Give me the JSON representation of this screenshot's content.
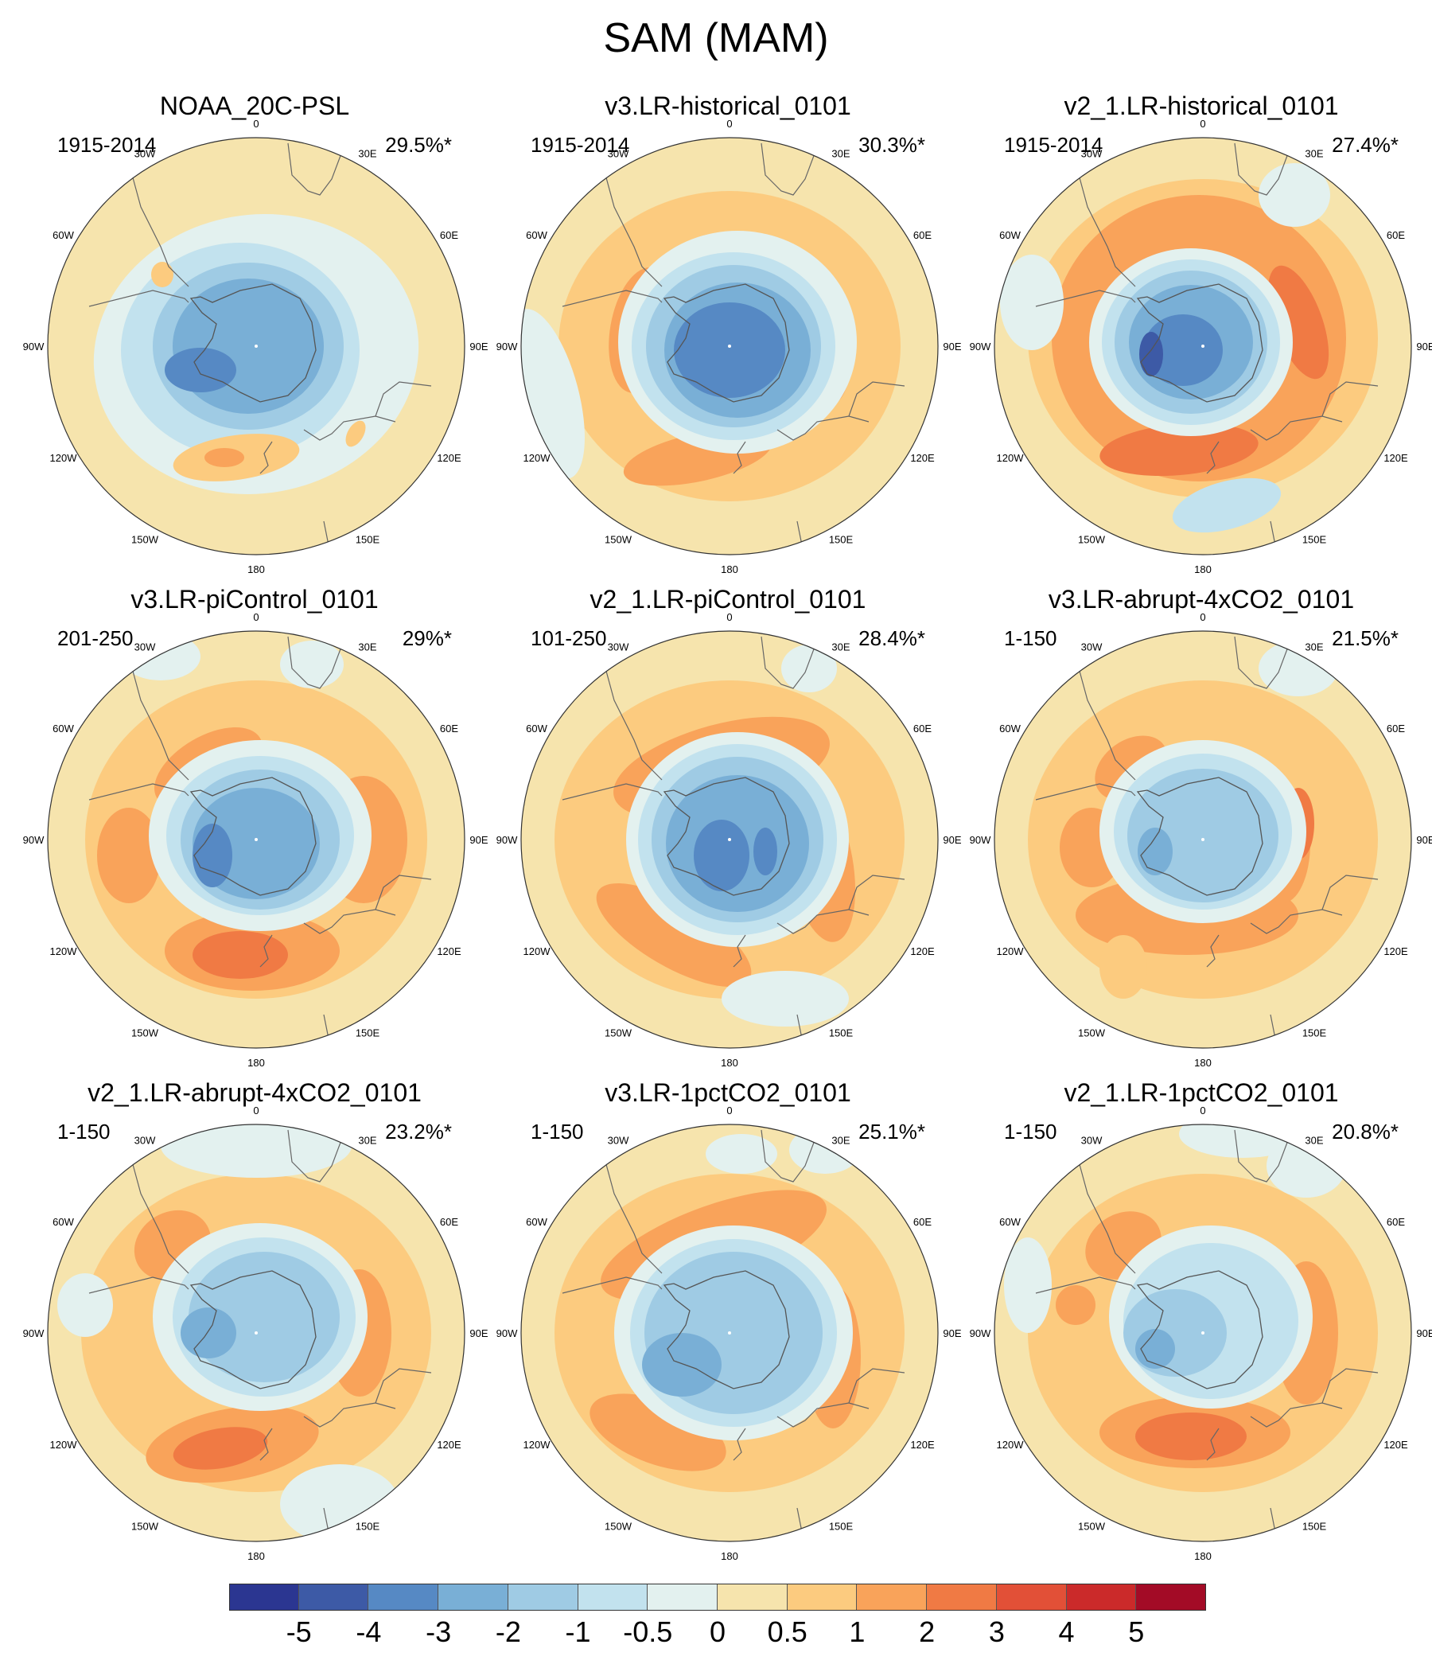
{
  "title": "SAM (MAM)",
  "panels": [
    {
      "title": "NOAA_20C-PSL",
      "period": "1915-2014",
      "variance": "29.5%*"
    },
    {
      "title": "v3.LR-historical_0101",
      "period": "1915-2014",
      "variance": "30.3%*"
    },
    {
      "title": "v2_1.LR-historical_0101",
      "period": "1915-2014",
      "variance": "27.4%*"
    },
    {
      "title": "v3.LR-piControl_0101",
      "period": "201-250",
      "variance": "29%*"
    },
    {
      "title": "v2_1.LR-piControl_0101",
      "period": "101-250",
      "variance": "28.4%*"
    },
    {
      "title": "v3.LR-abrupt-4xCO2_0101",
      "period": "1-150",
      "variance": "21.5%*"
    },
    {
      "title": "v2_1.LR-abrupt-4xCO2_0101",
      "period": "1-150",
      "variance": "23.2%*"
    },
    {
      "title": "v3.LR-1pctCO2_0101",
      "period": "1-150",
      "variance": "25.1%*"
    },
    {
      "title": "v2_1.LR-1pctCO2_0101",
      "period": "1-150",
      "variance": "20.8%*"
    }
  ],
  "longitude_labels": [
    "0",
    "30E",
    "60E",
    "90E",
    "120E",
    "150E",
    "180",
    "150W",
    "120W",
    "90W",
    "60W",
    "30W"
  ],
  "colorbar": {
    "labels": [
      "-5",
      "-4",
      "-3",
      "-2",
      "-1",
      "-0.5",
      "0",
      "0.5",
      "1",
      "2",
      "3",
      "4",
      "5"
    ],
    "colors": [
      "#2b3691",
      "#3d5aa6",
      "#5689c4",
      "#79afd6",
      "#9fcbe4",
      "#c2e2ee",
      "#e3f1ef",
      "#f6e4ad",
      "#fccb7f",
      "#f9a35a",
      "#f07a44",
      "#e25037",
      "#cb2a2a",
      "#a30b26"
    ]
  }
}
